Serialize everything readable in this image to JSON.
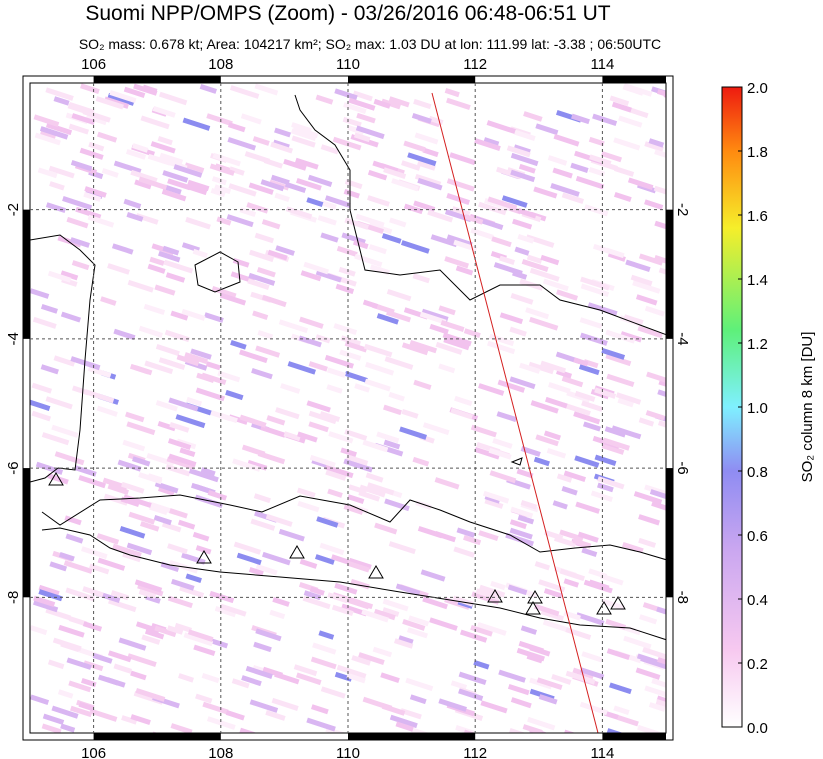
{
  "header": {
    "title": "Suomi NPP/OMPS (Zoom) - 03/26/2016 06:48-06:51 UT",
    "subtitle": "SO₂ mass: 0.678 kt; Area: 104217 km²; SO₂ max: 1.03 DU at lon: 111.99 lat: -3.38 ; 06:50UTC"
  },
  "map": {
    "xlim": [
      105,
      115
    ],
    "ylim": [
      -10.1,
      -0.04
    ],
    "xticks": [
      106,
      108,
      110,
      112,
      114
    ],
    "yticks": [
      -2,
      -4,
      -6,
      -8
    ]
  },
  "colorbar": {
    "label": "SO₂ column 8 km [DU]",
    "lim": [
      0,
      2
    ],
    "ticks": [
      {
        "value": 0,
        "label": "0.0"
      },
      0.2,
      0.4,
      0.6,
      0.8,
      {
        "value": 1,
        "label": "1.0"
      },
      1.2,
      1.4,
      1.6,
      1.8,
      {
        "value": 2,
        "label": "2.0"
      }
    ]
  }
}
